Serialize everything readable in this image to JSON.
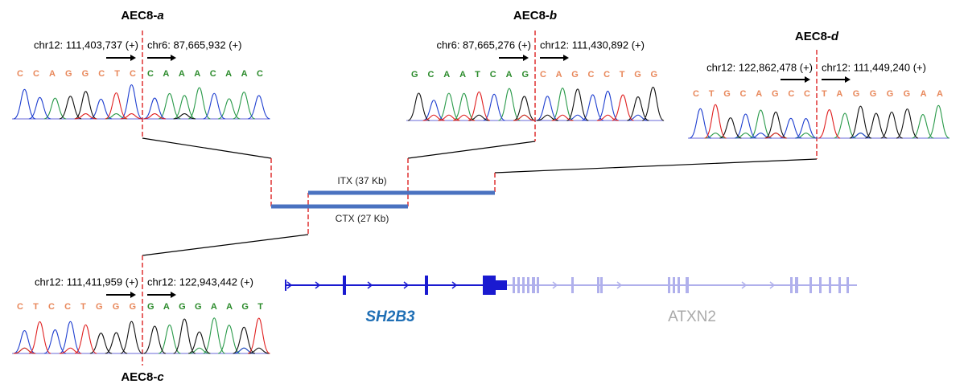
{
  "junctions": [
    {
      "name": "AEC8-",
      "variant": "a",
      "left_coord": "chr12: 111,403,737 (+)",
      "right_coord": "chr6: 87,665,932 (+)",
      "left_seq": "CCAGGCTC",
      "right_seq": "CAAACAAC"
    },
    {
      "name": "AEC8-",
      "variant": "b",
      "left_coord": "chr6: 87,665,276 (+)",
      "right_coord": "chr12: 111,430,892 (+)",
      "left_seq": "GCAATCAG",
      "right_seq": "CAGCCTGG"
    },
    {
      "name": "AEC8-",
      "variant": "d",
      "left_coord": "chr12: 122,862,478 (+)",
      "right_coord": "chr12: 111,449,240 (+)",
      "left_seq": "CTGCAGCC",
      "right_seq": "TAGGGGAA"
    },
    {
      "name": "AEC8-",
      "variant": "c",
      "left_coord": "chr12: 111,411,959 (+)",
      "right_coord": "chr12: 122,943,442 (+)",
      "left_seq": "CTCCTGGG",
      "right_seq": "GAGGAAGT"
    }
  ],
  "rearrangements": {
    "itx": "ITX (37 Kb)",
    "ctx": "CTX (27 Kb)"
  },
  "genes": [
    "SH2B3",
    "ATXN2"
  ]
}
